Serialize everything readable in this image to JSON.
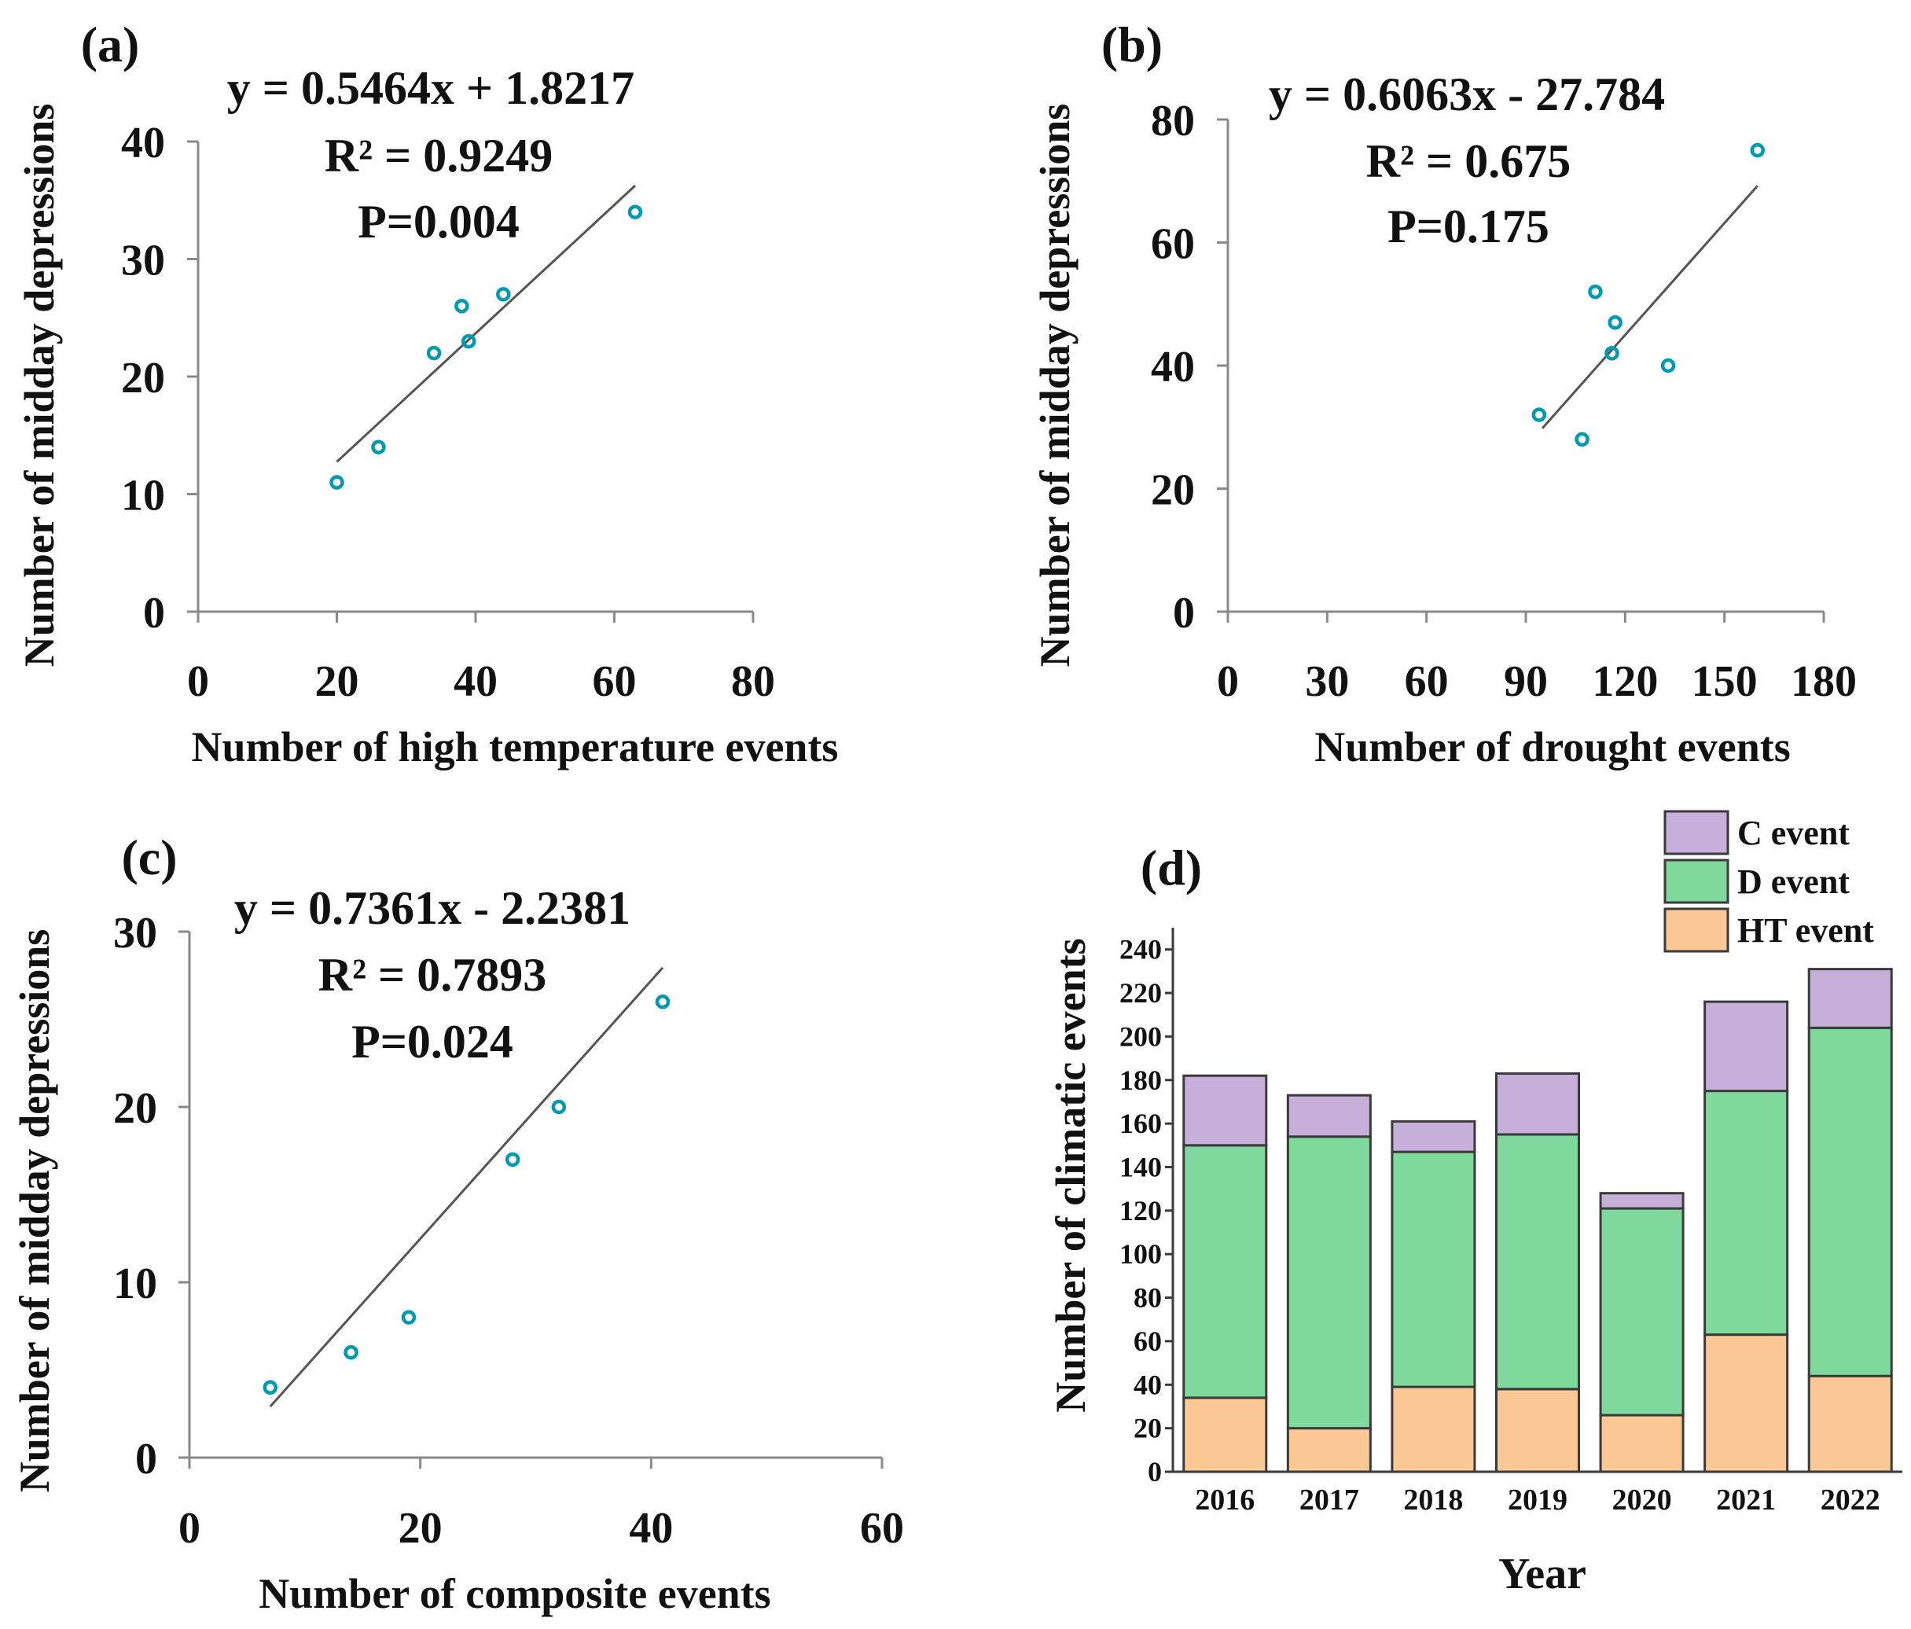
{
  "chart_data": [
    {
      "type": "scatter",
      "panel_label": "(a)",
      "xlabel": "Number of high temperature events",
      "ylabel": "Number of midday depressions",
      "xlim": [
        0,
        80
      ],
      "ylim": [
        0,
        40
      ],
      "xticks": [
        0,
        20,
        40,
        60,
        80
      ],
      "yticks": [
        0,
        10,
        20,
        30,
        40
      ],
      "points": [
        [
          20,
          11
        ],
        [
          26,
          14
        ],
        [
          34,
          22
        ],
        [
          38,
          26
        ],
        [
          39,
          23
        ],
        [
          44,
          27
        ],
        [
          63,
          34
        ]
      ],
      "trendline": {
        "x_range": [
          20,
          63
        ],
        "slope": 0.5464,
        "intercept": 1.8217
      },
      "annotations": [
        "y = 0.5464x + 1.8217",
        "R² = 0.9249",
        "P=0.004"
      ]
    },
    {
      "type": "scatter",
      "panel_label": "(b)",
      "xlabel": "Number of drought events",
      "ylabel": "Number of midday depressions",
      "xlim": [
        0,
        180
      ],
      "ylim": [
        0,
        80
      ],
      "xticks": [
        0,
        30,
        60,
        90,
        120,
        150,
        180
      ],
      "yticks": [
        0,
        20,
        40,
        60,
        80
      ],
      "points": [
        [
          94,
          32
        ],
        [
          107,
          28
        ],
        [
          111,
          52
        ],
        [
          116,
          42
        ],
        [
          117,
          47
        ],
        [
          133,
          40
        ],
        [
          160,
          75
        ]
      ],
      "trendline": {
        "x_range": [
          95,
          160
        ],
        "slope": 0.6063,
        "intercept": -27.784
      },
      "annotations": [
        "y = 0.6063x - 27.784",
        "R² = 0.675",
        "P=0.175"
      ]
    },
    {
      "type": "scatter",
      "panel_label": "(c)",
      "xlabel": "Number of composite events",
      "ylabel": "Number of midday depressions",
      "xlim": [
        0,
        60
      ],
      "ylim": [
        0,
        30
      ],
      "xticks": [
        0,
        20,
        40,
        60
      ],
      "yticks": [
        0,
        10,
        20,
        30
      ],
      "points": [
        [
          7,
          4
        ],
        [
          14,
          6
        ],
        [
          19,
          8
        ],
        [
          28,
          17
        ],
        [
          32,
          20
        ],
        [
          41,
          26
        ]
      ],
      "trendline": {
        "x_range": [
          7,
          41
        ],
        "slope": 0.7361,
        "intercept": -2.2381
      },
      "annotations": [
        "y = 0.7361x - 2.2381",
        "R² = 0.7893",
        "P=0.024"
      ]
    },
    {
      "type": "bar",
      "stacked": true,
      "panel_label": "(d)",
      "xlabel": "Year",
      "ylabel": "Number of climatic events",
      "categories": [
        "2016",
        "2017",
        "2018",
        "2019",
        "2020",
        "2021",
        "2022"
      ],
      "ylim": [
        0,
        250
      ],
      "yticks": [
        0,
        20,
        40,
        60,
        80,
        100,
        120,
        140,
        160,
        180,
        200,
        220,
        240
      ],
      "series": [
        {
          "name": "HT event",
          "color": "#fcc896",
          "values": [
            34,
            20,
            39,
            38,
            26,
            63,
            44
          ]
        },
        {
          "name": "D event",
          "color": "#7fd99c",
          "values": [
            116,
            134,
            108,
            117,
            95,
            112,
            160
          ]
        },
        {
          "name": "C event",
          "color": "#c6b0da",
          "values": [
            32,
            19,
            14,
            28,
            7,
            41,
            27
          ]
        }
      ],
      "legend": [
        "C event",
        "D event",
        "HT event"
      ],
      "legend_position": "top-right"
    }
  ]
}
